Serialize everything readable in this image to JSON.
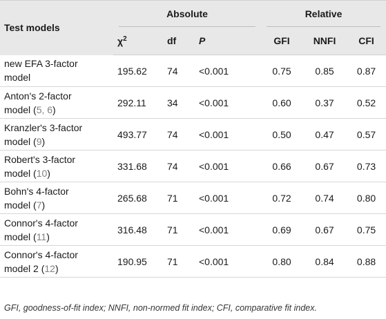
{
  "header": {
    "col_name": "Test models",
    "group_absolute": "Absolute",
    "group_relative": "Relative",
    "chi_symbol": "χ",
    "chi_sup": "2",
    "df": "df",
    "p": "P",
    "gfi": "GFI",
    "nnfi": "NNFI",
    "cfi": "CFI"
  },
  "rows": [
    {
      "line1": "new EFA 3-factor",
      "line2": "model",
      "refs": "",
      "refs_suffix": "",
      "chi2": "195.62",
      "df": "74",
      "p": "<0.001",
      "gfi": "0.75",
      "nnfi": "0.85",
      "cfi": "0.87"
    },
    {
      "line1": "Anton's 2-factor",
      "line2": "model (",
      "refs": "5, 6",
      "refs_suffix": ")",
      "chi2": "292.11",
      "df": "34",
      "p": "<0.001",
      "gfi": "0.60",
      "nnfi": "0.37",
      "cfi": "0.52"
    },
    {
      "line1": "Kranzler's 3-factor",
      "line2": "model (",
      "refs": "9",
      "refs_suffix": ")",
      "chi2": "493.77",
      "df": "74",
      "p": "<0.001",
      "gfi": "0.50",
      "nnfi": "0.47",
      "cfi": "0.57"
    },
    {
      "line1": "Robert's 3-factor",
      "line2": "model (",
      "refs": "10",
      "refs_suffix": ")",
      "chi2": "331.68",
      "df": "74",
      "p": "<0.001",
      "gfi": "0.66",
      "nnfi": "0.67",
      "cfi": "0.73"
    },
    {
      "line1": "Bohn's 4-factor",
      "line2": "model (",
      "refs": "7",
      "refs_suffix": ")",
      "chi2": "265.68",
      "df": "71",
      "p": "<0.001",
      "gfi": "0.72",
      "nnfi": "0.74",
      "cfi": "0.80"
    },
    {
      "line1": "Connor's 4-factor",
      "line2": "model (",
      "refs": "11",
      "refs_suffix": ")",
      "chi2": "316.48",
      "df": "71",
      "p": "<0.001",
      "gfi": "0.69",
      "nnfi": "0.67",
      "cfi": "0.75"
    },
    {
      "line1": "Connor's 4-factor",
      "line2": "model 2 (",
      "refs": "12",
      "refs_suffix": ")",
      "chi2": "190.95",
      "df": "71",
      "p": "<0.001",
      "gfi": "0.80",
      "nnfi": "0.84",
      "cfi": "0.88"
    }
  ],
  "footnote": "GFI, goodness-of-fit index; NNFI, non-normed fit index; CFI, comparative fit index.",
  "colors": {
    "header_bg": "#e8e8e8",
    "ref_color": "#808080"
  }
}
